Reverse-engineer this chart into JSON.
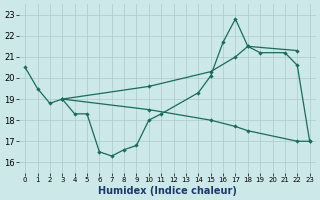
{
  "xlabel": "Humidex (Indice chaleur)",
  "background_color": "#cce8e8",
  "grid_color": "#aacccc",
  "line_color": "#1a6b5a",
  "xlim": [
    -0.5,
    23.5
  ],
  "ylim": [
    15.5,
    23.5
  ],
  "xticks": [
    0,
    1,
    2,
    3,
    4,
    5,
    6,
    7,
    8,
    9,
    10,
    11,
    12,
    13,
    14,
    15,
    16,
    17,
    18,
    19,
    20,
    21,
    22,
    23
  ],
  "yticks": [
    16,
    17,
    18,
    19,
    20,
    21,
    22,
    23
  ],
  "line1_x": [
    0,
    1,
    2,
    3,
    4,
    5,
    6,
    7,
    8,
    9,
    10,
    11,
    14,
    15,
    16,
    17,
    18,
    19,
    21,
    22,
    23
  ],
  "line1_y": [
    20.5,
    19.5,
    18.8,
    19.0,
    18.3,
    18.3,
    16.5,
    16.3,
    16.6,
    16.8,
    18.0,
    18.3,
    19.3,
    20.1,
    21.7,
    22.8,
    21.5,
    21.2,
    21.2,
    20.6,
    17.0
  ],
  "line2_x": [
    3,
    10,
    15,
    17,
    18,
    22
  ],
  "line2_y": [
    19.0,
    19.6,
    20.3,
    21.0,
    21.5,
    21.3
  ],
  "line3_x": [
    3,
    10,
    15,
    17,
    18,
    22,
    23
  ],
  "line3_y": [
    19.0,
    18.5,
    18.0,
    17.7,
    17.5,
    17.0,
    17.0
  ]
}
